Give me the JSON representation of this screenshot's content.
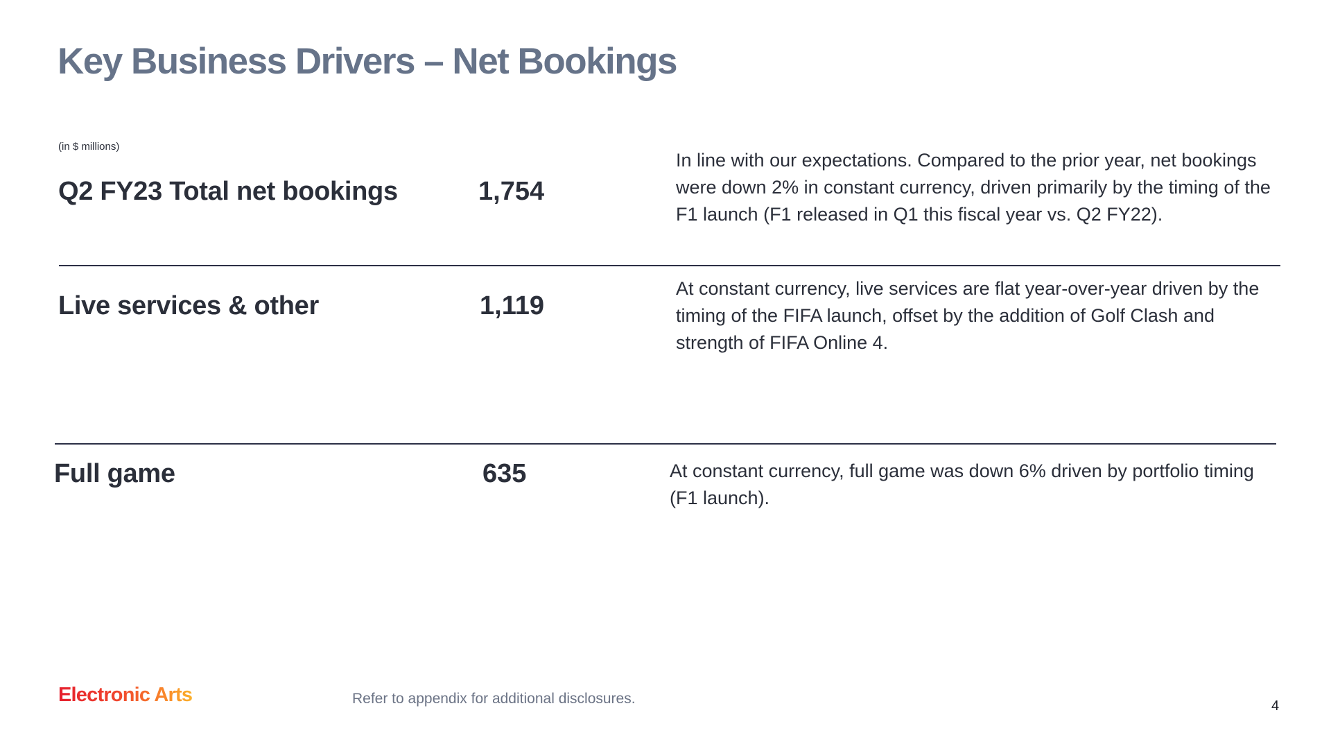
{
  "slide": {
    "title": "Key Business Drivers – Net Bookings",
    "units_note": "(in $ millions)",
    "rows": [
      {
        "label": "Q2 FY23 Total net bookings",
        "value": "1,754",
        "description": "In line with our expectations. Compared to the prior year, net bookings were down 2% in constant currency, driven primarily by the timing of the F1 launch (F1 released in Q1 this fiscal year vs. Q2 FY22)."
      },
      {
        "label": "Live services & other",
        "value": "1,119",
        "description": "At constant currency, live services are flat year-over-year driven by the timing of the FIFA launch, offset by the addition of Golf Clash and strength of FIFA Online 4."
      },
      {
        "label": "Full game",
        "value": "635",
        "description": "At constant currency, full game was down 6% driven by portfolio timing (F1 launch)."
      }
    ],
    "footnote": "Refer to appendix for additional disclosures.",
    "page_number": "4",
    "logo_text": "Electronic Arts",
    "colors": {
      "title": "#667389",
      "text": "#2b2f3a",
      "rule": "#2b2f45",
      "logo_gradient": [
        "#e5202e",
        "#f9892b",
        "#fbb02a"
      ]
    }
  }
}
